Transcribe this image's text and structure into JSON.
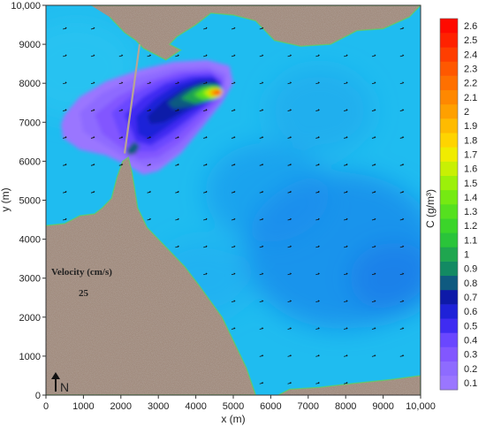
{
  "chart_data": {
    "type": "heatmap",
    "title": "",
    "xlabel": "x (m)",
    "ylabel": "y (m)",
    "xlim": [
      0,
      10000
    ],
    "ylim": [
      0,
      10000
    ],
    "x_ticks": [
      0,
      1000,
      2000,
      3000,
      4000,
      5000,
      6000,
      7000,
      8000,
      9000,
      10000
    ],
    "x_tick_labels": [
      "0",
      "1000",
      "2000",
      "3000",
      "4000",
      "5000",
      "6000",
      "7000",
      "8000",
      "9000",
      "10,000"
    ],
    "y_ticks": [
      0,
      1000,
      2000,
      3000,
      4000,
      5000,
      6000,
      7000,
      8000,
      9000,
      10000
    ],
    "y_tick_labels": [
      "0",
      "1000",
      "2000",
      "3000",
      "4000",
      "5000",
      "6000",
      "7000",
      "8000",
      "9000",
      "10,000"
    ],
    "colorbar": {
      "label": "C (g/m³)",
      "levels": [
        0.1,
        0.2,
        0.3,
        0.4,
        0.5,
        0.6,
        0.7,
        0.8,
        0.9,
        1,
        1.1,
        1.2,
        1.3,
        1.4,
        1.5,
        1.6,
        1.7,
        1.8,
        1.9,
        2,
        2.1,
        2.2,
        2.3,
        2.4,
        2.5,
        2.6
      ],
      "level_labels": [
        "0.1",
        "0.2",
        "0.3",
        "0.4",
        "0.5",
        "0.6",
        "0.7",
        "0.8",
        "0.9",
        "1",
        "1.1",
        "1.2",
        "1.3",
        "1.4",
        "1.5",
        "1.6",
        "1.7",
        "1.8",
        "1.9",
        "2",
        "2.1",
        "2.2",
        "2.3",
        "2.4",
        "2.5",
        "2.6"
      ],
      "colors": [
        "#9a76ff",
        "#8e6bff",
        "#8257ff",
        "#6a47ff",
        "#3f2cf2",
        "#1f22d8",
        "#0e1aa8",
        "#0f5a80",
        "#138a63",
        "#1fa64f",
        "#2ac43a",
        "#3bd52a",
        "#55e01f",
        "#75ea12",
        "#9cf00a",
        "#c8f004",
        "#f0ec00",
        "#ffd400",
        "#ffbb00",
        "#ffa000",
        "#ff8800",
        "#ff7000",
        "#ff5800",
        "#ff3e00",
        "#ff2200",
        "#ff0a00"
      ]
    },
    "plume": {
      "peak_concentration": 2.6,
      "peak_location": [
        4550,
        7750
      ],
      "contours": [
        {
          "level": 0.1,
          "polygon": [
            [
              500,
              7200
            ],
            [
              900,
              7650
            ],
            [
              1600,
              8050
            ],
            [
              2500,
              8350
            ],
            [
              3400,
              8550
            ],
            [
              4300,
              8600
            ],
            [
              4900,
              8450
            ],
            [
              5000,
              8000
            ],
            [
              4700,
              7500
            ],
            [
              4200,
              6900
            ],
            [
              3600,
              6200
            ],
            [
              3000,
              5750
            ],
            [
              2600,
              5650
            ],
            [
              2150,
              5900
            ],
            [
              1600,
              6150
            ],
            [
              900,
              6300
            ],
            [
              450,
              6600
            ],
            [
              400,
              6950
            ]
          ]
        },
        {
          "level": 0.2,
          "polygon": [
            [
              900,
              7250
            ],
            [
              1500,
              7750
            ],
            [
              2400,
              8150
            ],
            [
              3400,
              8400
            ],
            [
              4300,
              8450
            ],
            [
              4800,
              8250
            ],
            [
              4800,
              7700
            ],
            [
              4300,
              7050
            ],
            [
              3700,
              6350
            ],
            [
              3100,
              5950
            ],
            [
              2700,
              5850
            ],
            [
              2200,
              6050
            ],
            [
              1500,
              6450
            ],
            [
              1000,
              6750
            ]
          ]
        },
        {
          "level": 0.3,
          "polygon": [
            [
              1300,
              7200
            ],
            [
              1900,
              7650
            ],
            [
              2700,
              8050
            ],
            [
              3500,
              8300
            ],
            [
              4350,
              8350
            ],
            [
              4750,
              8150
            ],
            [
              4650,
              7600
            ],
            [
              4150,
              7050
            ],
            [
              3550,
              6450
            ],
            [
              3000,
              6100
            ],
            [
              2500,
              6050
            ],
            [
              2000,
              6350
            ],
            [
              1500,
              6700
            ]
          ]
        },
        {
          "level": 0.4,
          "polygon": [
            [
              1750,
              7250
            ],
            [
              2300,
              7700
            ],
            [
              3000,
              8050
            ],
            [
              3700,
              8250
            ],
            [
              4400,
              8280
            ],
            [
              4700,
              8050
            ],
            [
              4550,
              7600
            ],
            [
              4000,
              7100
            ],
            [
              3400,
              6550
            ],
            [
              2900,
              6250
            ],
            [
              2450,
              6250
            ],
            [
              2000,
              6600
            ]
          ]
        },
        {
          "level": 0.5,
          "polygon": [
            [
              2100,
              7200
            ],
            [
              2600,
              7650
            ],
            [
              3200,
              8000
            ],
            [
              3900,
              8180
            ],
            [
              4450,
              8200
            ],
            [
              4700,
              7980
            ],
            [
              4500,
              7600
            ],
            [
              3900,
              7150
            ],
            [
              3300,
              6700
            ],
            [
              2800,
              6400
            ],
            [
              2400,
              6500
            ]
          ]
        },
        {
          "level": 0.6,
          "polygon": [
            [
              2400,
              7150
            ],
            [
              2900,
              7600
            ],
            [
              3450,
              7950
            ],
            [
              4050,
              8120
            ],
            [
              4500,
              8130
            ],
            [
              4680,
              7920
            ],
            [
              4450,
              7600
            ],
            [
              3800,
              7250
            ],
            [
              3200,
              6850
            ],
            [
              2750,
              6550
            ],
            [
              2450,
              6700
            ]
          ]
        },
        {
          "level": 0.7,
          "polygon": [
            [
              2700,
              7150
            ],
            [
              3150,
              7550
            ],
            [
              3650,
              7870
            ],
            [
              4150,
              8050
            ],
            [
              4550,
              8060
            ],
            [
              4680,
              7870
            ],
            [
              4400,
              7580
            ],
            [
              3750,
              7320
            ],
            [
              3150,
              7000
            ],
            [
              2800,
              6950
            ]
          ]
        },
        {
          "level": 0.8,
          "polygon": [
            [
              3250,
              7500
            ],
            [
              3700,
              7820
            ],
            [
              4150,
              7990
            ],
            [
              4550,
              8000
            ],
            [
              4700,
              7840
            ],
            [
              4450,
              7580
            ],
            [
              3850,
              7400
            ],
            [
              3400,
              7350
            ]
          ]
        },
        {
          "level": 1,
          "polygon": [
            [
              3600,
              7600
            ],
            [
              3950,
              7860
            ],
            [
              4300,
              7960
            ],
            [
              4620,
              7950
            ],
            [
              4720,
              7800
            ],
            [
              4500,
              7580
            ],
            [
              4000,
              7480
            ]
          ]
        },
        {
          "level": 1.3,
          "polygon": [
            [
              3950,
              7700
            ],
            [
              4200,
              7870
            ],
            [
              4450,
              7920
            ],
            [
              4680,
              7880
            ],
            [
              4730,
              7760
            ],
            [
              4550,
              7610
            ],
            [
              4200,
              7580
            ]
          ]
        },
        {
          "level": 1.6,
          "polygon": [
            [
              4200,
              7760
            ],
            [
              4400,
              7870
            ],
            [
              4600,
              7880
            ],
            [
              4730,
              7800
            ],
            [
              4650,
              7650
            ],
            [
              4400,
              7620
            ]
          ]
        },
        {
          "level": 2,
          "polygon": [
            [
              4350,
              7780
            ],
            [
              4500,
              7850
            ],
            [
              4650,
              7840
            ],
            [
              4720,
              7760
            ],
            [
              4600,
              7680
            ],
            [
              4430,
              7680
            ]
          ]
        },
        {
          "level": 2.4,
          "polygon": [
            [
              4470,
              7760
            ],
            [
              4580,
              7810
            ],
            [
              4680,
              7780
            ],
            [
              4640,
              7710
            ],
            [
              4520,
              7710
            ]
          ]
        },
        {
          "level": 2.6,
          "polygon": [
            [
              4540,
              7750
            ],
            [
              4600,
              7780
            ],
            [
              4650,
              7750
            ],
            [
              4600,
              7720
            ]
          ]
        }
      ],
      "hotspot_secondary": {
        "level": 0.8,
        "polygon": [
          [
            2150,
            6300
          ],
          [
            2350,
            6500
          ],
          [
            2500,
            6400
          ],
          [
            2400,
            6200
          ],
          [
            2200,
            6150
          ]
        ]
      }
    },
    "land": [
      {
        "name": "north-coast",
        "polygon": [
          [
            1200,
            10000
          ],
          [
            10000,
            10000
          ],
          [
            9700,
            9700
          ],
          [
            9000,
            9400
          ],
          [
            8300,
            9350
          ],
          [
            7600,
            9000
          ],
          [
            6800,
            8950
          ],
          [
            6100,
            9100
          ],
          [
            5600,
            9600
          ],
          [
            5000,
            9750
          ],
          [
            4400,
            9800
          ],
          [
            4000,
            9500
          ],
          [
            3500,
            9200
          ],
          [
            3300,
            9000
          ],
          [
            3600,
            8850
          ],
          [
            3200,
            8600
          ],
          [
            2600,
            8900
          ],
          [
            2400,
            9100
          ],
          [
            2100,
            9300
          ],
          [
            1700,
            9700
          ]
        ]
      },
      {
        "name": "southwest-coast",
        "polygon": [
          [
            0,
            4350
          ],
          [
            500,
            4400
          ],
          [
            900,
            4600
          ],
          [
            1300,
            4650
          ],
          [
            1500,
            4800
          ],
          [
            1750,
            5050
          ],
          [
            1900,
            5600
          ],
          [
            2050,
            6000
          ],
          [
            2200,
            6100
          ],
          [
            2300,
            5700
          ],
          [
            2450,
            4800
          ],
          [
            2700,
            4300
          ],
          [
            3200,
            3800
          ],
          [
            3700,
            3300
          ],
          [
            4100,
            2800
          ],
          [
            4700,
            2000
          ],
          [
            5000,
            1400
          ],
          [
            5350,
            700
          ],
          [
            5600,
            0
          ],
          [
            0,
            0
          ]
        ]
      },
      {
        "name": "southeast-coast",
        "polygon": [
          [
            6200,
            0
          ],
          [
            6500,
            150
          ],
          [
            7300,
            200
          ],
          [
            8200,
            300
          ],
          [
            9200,
            400
          ],
          [
            10000,
            500
          ],
          [
            10000,
            0
          ]
        ]
      }
    ],
    "causeway": [
      [
        2100,
        6200
      ],
      [
        2500,
        9000
      ]
    ],
    "velocity_legend": {
      "title": "Velocity (cm/s)",
      "value": "25"
    },
    "north_arrow_label": "N"
  }
}
